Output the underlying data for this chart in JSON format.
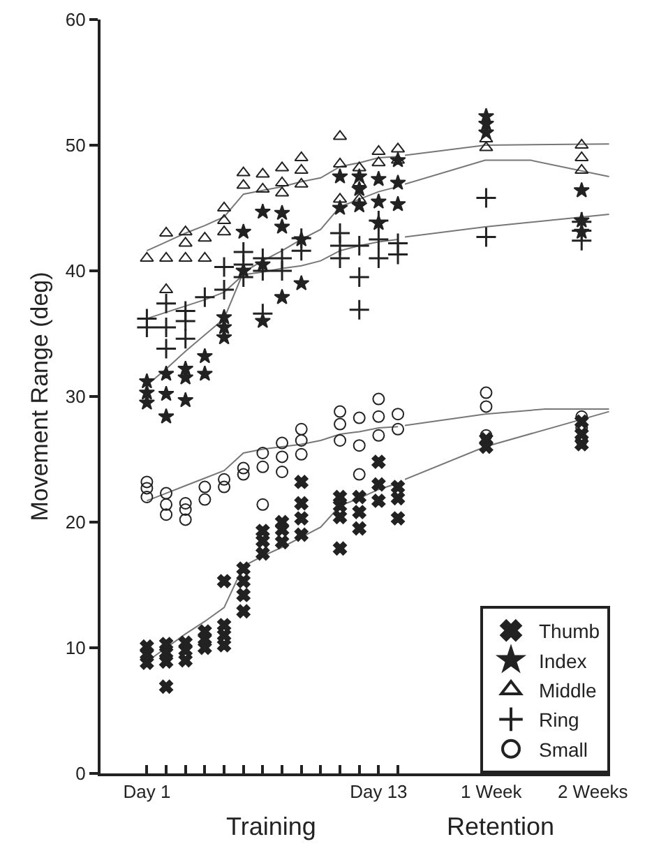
{
  "chart_data": [
    {
      "type": "scatter",
      "xlabel": "Training",
      "ylabel": "Movement Range (deg)",
      "grid": false,
      "categories": [
        "Day 1",
        null,
        null,
        null,
        null,
        null,
        null,
        null,
        null,
        null,
        null,
        null,
        "Day 13",
        null
      ],
      "ylim": [
        0,
        60
      ],
      "yticks": [
        0,
        10,
        20,
        30,
        40,
        50,
        60
      ],
      "series": [
        {
          "type": "scatter",
          "marker": "cross",
          "color": "#222222",
          "values": [
            8.8,
            6.9,
            9.0,
            10.0,
            10.2,
            12.9,
            17.5,
            18.4,
            19.0,
            null,
            17.9,
            19.5,
            21.7,
            20.3
          ]
        },
        {
          "type": "scatter",
          "marker": "cross",
          "color": "#222222",
          "values": [
            9.5,
            8.9,
            9.8,
            10.7,
            11.0,
            14.2,
            18.5,
            19.4,
            20.3,
            null,
            20.4,
            20.8,
            23.0,
            21.9
          ]
        },
        {
          "type": "scatter",
          "marker": "cross",
          "color": "#222222",
          "values": [
            10.1,
            9.6,
            10.4,
            11.3,
            11.8,
            15.3,
            19.3,
            20.0,
            21.5,
            null,
            21.3,
            22.0,
            24.8,
            22.8
          ]
        },
        {
          "type": "scatter",
          "marker": "cross",
          "color": "#222222",
          "values": [
            null,
            10.3,
            null,
            null,
            15.3,
            16.3,
            null,
            null,
            23.2,
            null,
            22.0,
            null,
            null,
            null
          ]
        },
        {
          "type": "scatter",
          "marker": "star",
          "color": "#222222",
          "values": [
            29.5,
            28.4,
            29.7,
            31.8,
            34.7,
            40.0,
            36.0,
            37.9,
            39.0,
            null,
            45.0,
            45.2,
            43.8,
            45.3
          ]
        },
        {
          "type": "scatter",
          "marker": "star",
          "color": "#222222",
          "values": [
            30.3,
            30.2,
            31.5,
            33.2,
            35.5,
            43.1,
            40.5,
            43.5,
            42.5,
            null,
            47.5,
            46.5,
            45.5,
            47.0
          ]
        },
        {
          "type": "scatter",
          "marker": "star",
          "color": "#222222",
          "values": [
            31.2,
            31.8,
            32.2,
            null,
            36.3,
            null,
            44.7,
            44.6,
            null,
            null,
            null,
            47.5,
            47.3,
            48.8
          ]
        },
        {
          "type": "scatter",
          "marker": "triangle",
          "color": "#222222",
          "values": [
            41.0,
            38.5,
            41.0,
            41.0,
            43.1,
            46.8,
            46.5,
            46.2,
            46.9,
            null,
            45.7,
            45.7,
            48.6,
            48.8
          ]
        },
        {
          "type": "scatter",
          "marker": "triangle",
          "color": "#222222",
          "values": [
            null,
            41.0,
            42.2,
            42.6,
            44.0,
            47.8,
            47.7,
            47.0,
            48.0,
            null,
            48.5,
            47.0,
            49.5,
            49.7
          ]
        },
        {
          "type": "scatter",
          "marker": "triangle",
          "color": "#222222",
          "values": [
            null,
            43.0,
            43.1,
            null,
            45.0,
            null,
            null,
            48.2,
            49.0,
            null,
            50.7,
            48.2,
            null,
            null
          ]
        },
        {
          "type": "scatter",
          "marker": "plus",
          "color": "#222222",
          "values": [
            35.5,
            33.8,
            34.6,
            37.9,
            null,
            39.5,
            36.6,
            40.0,
            41.6,
            null,
            41.0,
            36.9,
            41.0,
            41.3
          ]
        },
        {
          "type": "scatter",
          "marker": "plus",
          "color": "#222222",
          "values": [
            36.2,
            35.5,
            36.0,
            null,
            38.5,
            40.5,
            40.0,
            41.0,
            42.6,
            null,
            42.0,
            39.5,
            42.5,
            42.2
          ]
        },
        {
          "type": "scatter",
          "marker": "plus",
          "color": "#222222",
          "values": [
            null,
            37.4,
            36.8,
            null,
            40.3,
            41.5,
            41.0,
            null,
            null,
            null,
            43.0,
            42.0,
            44.0,
            null
          ]
        },
        {
          "type": "scatter",
          "marker": "circle",
          "color": "#222222",
          "values": [
            22.0,
            20.6,
            20.2,
            21.8,
            22.8,
            23.8,
            21.4,
            24.0,
            25.4,
            null,
            26.5,
            23.8,
            26.9,
            27.4
          ]
        },
        {
          "type": "scatter",
          "marker": "circle",
          "color": "#222222",
          "values": [
            22.7,
            21.4,
            21.0,
            22.8,
            23.4,
            24.3,
            24.4,
            25.2,
            26.5,
            null,
            27.8,
            26.1,
            28.4,
            28.6
          ]
        },
        {
          "type": "scatter",
          "marker": "circle",
          "color": "#222222",
          "values": [
            23.2,
            22.3,
            21.5,
            null,
            null,
            null,
            25.5,
            26.3,
            27.4,
            null,
            28.8,
            28.3,
            29.8,
            null
          ]
        },
        {
          "type": "line",
          "color": "#777777",
          "values": [
            41.6,
            42.3,
            43.0,
            43.6,
            44.3,
            46.1,
            46.4,
            46.7,
            47.1,
            47.4,
            48.3,
            48.6,
            49.0,
            49.1
          ]
        },
        {
          "type": "line",
          "color": "#777777",
          "values": [
            30.9,
            32.2,
            33.6,
            34.9,
            36.2,
            39.9,
            40.8,
            41.6,
            42.5,
            43.3,
            45.1,
            45.7,
            46.3,
            46.7
          ]
        },
        {
          "type": "line",
          "color": "#777777",
          "values": [
            36.2,
            36.7,
            37.2,
            37.7,
            38.3,
            39.7,
            39.9,
            40.2,
            40.4,
            40.8,
            41.6,
            42.0,
            42.3,
            42.5
          ]
        },
        {
          "type": "line",
          "color": "#777777",
          "values": [
            21.7,
            22.3,
            22.9,
            23.5,
            24.1,
            25.5,
            25.8,
            26.0,
            26.2,
            26.5,
            27.0,
            27.2,
            27.5,
            27.6
          ]
        },
        {
          "type": "line",
          "color": "#777777",
          "values": [
            8.9,
            10.0,
            11.1,
            12.1,
            13.2,
            16.5,
            17.3,
            18.0,
            18.8,
            19.6,
            21.3,
            21.9,
            22.6,
            23.1
          ]
        }
      ]
    },
    {
      "type": "scatter",
      "xlabel": "Retention",
      "tick_labels": "x",
      "legend": "bottom right",
      "grid": false,
      "xlim": [
        0.15,
        2.17
      ],
      "xticks": [
        {
          "value": 1,
          "label": "1 Week"
        },
        {
          "value": 2,
          "label": "2 Weeks"
        }
      ],
      "ylim": [
        0,
        60
      ],
      "series": [
        {
          "name": "Thumb",
          "type": "scatter",
          "marker": "cross",
          "color": "#222222",
          "x": [
            0.95,
            0.95,
            1.89,
            1.89,
            1.89
          ],
          "values": [
            26.0,
            26.6,
            26.2,
            27.0,
            28.0
          ]
        },
        {
          "name": "Index",
          "type": "scatter",
          "marker": "star",
          "color": "#222222",
          "x": [
            0.95,
            0.95,
            0.95,
            1.89,
            1.89,
            1.89
          ],
          "values": [
            51.0,
            51.7,
            52.3,
            43.1,
            44.0,
            46.4
          ]
        },
        {
          "name": "Middle",
          "type": "scatter",
          "marker": "triangle",
          "color": "#222222",
          "x": [
            0.95,
            0.95,
            1.89,
            1.89,
            1.89
          ],
          "values": [
            49.8,
            50.5,
            48.0,
            49.0,
            50.0
          ]
        },
        {
          "name": "Ring",
          "type": "scatter",
          "marker": "plus",
          "color": "#222222",
          "x": [
            0.95,
            0.95,
            1.89,
            1.89,
            1.89
          ],
          "values": [
            42.7,
            45.8,
            42.4,
            43.2,
            43.9
          ]
        },
        {
          "name": "Small",
          "type": "scatter",
          "marker": "circle",
          "color": "#222222",
          "x": [
            0.95,
            0.95,
            0.95,
            1.89,
            1.89,
            1.89
          ],
          "values": [
            26.9,
            29.2,
            30.3,
            26.5,
            27.5,
            28.4
          ]
        },
        {
          "type": "line",
          "color": "#777777",
          "x": [
            0.15,
            0.94,
            2.16
          ],
          "values": [
            49.2,
            50.0,
            50.1
          ]
        },
        {
          "type": "line",
          "color": "#777777",
          "x": [
            0.15,
            0.94,
            1.39,
            2.16
          ],
          "values": [
            46.9,
            48.8,
            48.8,
            47.5
          ]
        },
        {
          "type": "line",
          "color": "#777777",
          "x": [
            0.15,
            0.94,
            2.16
          ],
          "values": [
            42.7,
            43.5,
            44.5
          ]
        },
        {
          "type": "line",
          "color": "#777777",
          "x": [
            0.15,
            0.94,
            1.53,
            2.16
          ],
          "values": [
            27.7,
            28.6,
            29.0,
            29.0
          ]
        },
        {
          "type": "line",
          "color": "#777777",
          "x": [
            0.15,
            0.94,
            2.16
          ],
          "values": [
            23.4,
            26.0,
            28.8
          ]
        }
      ]
    }
  ]
}
